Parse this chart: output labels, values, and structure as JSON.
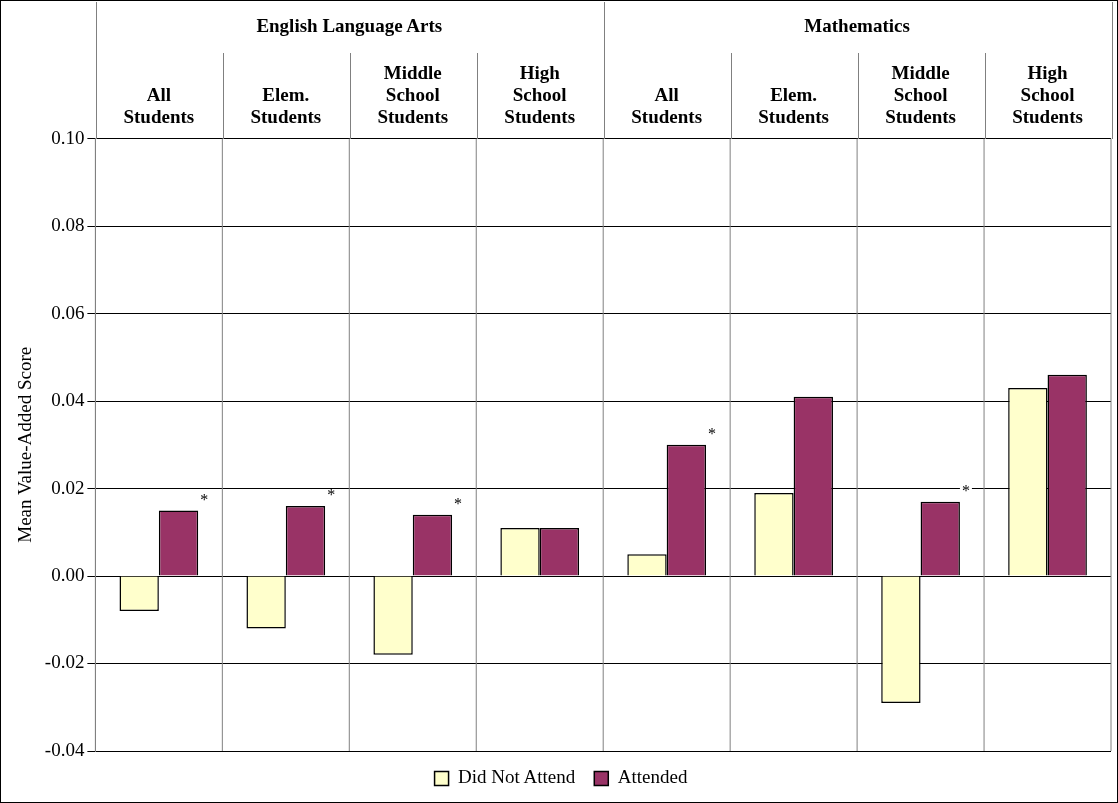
{
  "chart_data": {
    "type": "bar",
    "categories": [
      "All Students",
      "Elem. Students",
      "Middle School Students",
      "High School Students",
      "All Students",
      "Elem. Students",
      "Middle School Students",
      "High School Students"
    ],
    "series": [
      {
        "name": "Did Not Attend",
        "color": "#ffffcc",
        "values": [
          -0.008,
          -0.012,
          -0.018,
          0.011,
          0.005,
          0.019,
          -0.029,
          0.043
        ]
      },
      {
        "name": "Attended",
        "color": "#993366",
        "values": [
          0.015,
          0.016,
          0.014,
          0.011,
          0.03,
          0.041,
          0.017,
          0.046
        ],
        "value_labels": [
          "*",
          "*",
          "*",
          null,
          "*",
          null,
          "*",
          null
        ]
      }
    ],
    "ylabel": "Mean Value-Added Score",
    "ylim": [
      -0.04,
      0.1
    ],
    "yticks": [
      {
        "value": -0.04,
        "label": "-0.04"
      },
      {
        "value": -0.02,
        "label": "-0.02"
      },
      {
        "value": 0,
        "label": "0.00"
      },
      {
        "value": 0.02,
        "label": "0.02"
      },
      {
        "value": 0.04,
        "label": "0.04"
      },
      {
        "value": 0.06,
        "label": "0.06"
      },
      {
        "value": 0.08,
        "label": "0.08"
      },
      {
        "value": 0.1,
        "label": "0.10"
      }
    ],
    "annotations": [
      "English Language Arts",
      "Mathematics"
    ],
    "grid": true,
    "legend": "bottom"
  }
}
